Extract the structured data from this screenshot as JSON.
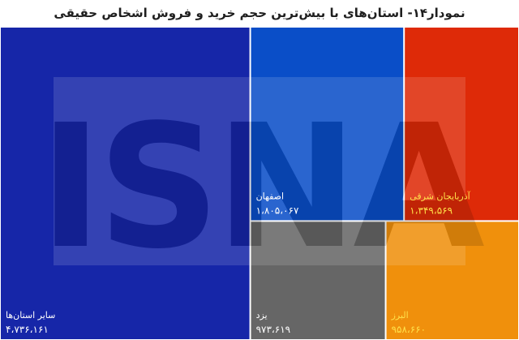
{
  "chart_data": {
    "type": "treemap",
    "title": "نمودار۱۴- استان‌های با بیش‌ترین حجم خرید و فروش اشخاص حقیقی",
    "watermark": "ISNA",
    "items": [
      {
        "label": "سایر استان‌ها",
        "value": 4736161,
        "display_value": "۴،۷۳۶،۱۶۱",
        "color": "#1626a8",
        "text_color": "#ffffff"
      },
      {
        "label": "اصفهان",
        "value": 1805067,
        "display_value": "۱،۸۰۵،۰۶۷",
        "color": "#0a4ec8",
        "text_color": "#ffffff"
      },
      {
        "label": "آذربایجان شرقی",
        "value": 1349569,
        "display_value": "۱،۳۴۹،۵۶۹",
        "color": "#de2a08",
        "text_color": "#ffe14a"
      },
      {
        "label": "یزد",
        "value": 973619,
        "display_value": "۹۷۳،۶۱۹",
        "color": "#666666",
        "text_color": "#ffffff"
      },
      {
        "label": "البرز",
        "value": 958660,
        "display_value": "۹۵۸،۶۶۰",
        "color": "#f0900c",
        "text_color": "#ffe14a"
      }
    ]
  }
}
